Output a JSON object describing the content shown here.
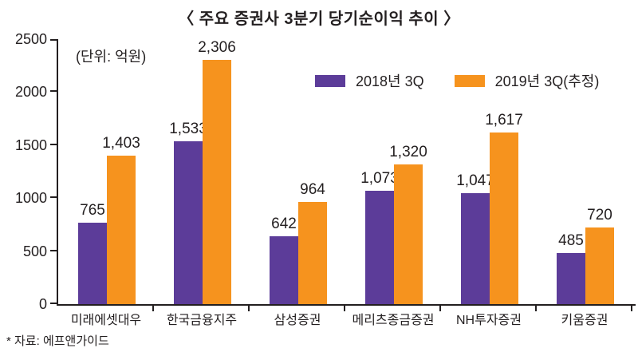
{
  "chart_data": {
    "type": "bar",
    "title": "〈 주요 증권사 3분기 당기순이익 추이 〉",
    "unit_label": "(단위: 억원)",
    "source": "* 자료: 에프앤가이드",
    "categories": [
      "미래에셋대우",
      "한국금융지주",
      "삼성증권",
      "메리츠종금증권",
      "NH투자증권",
      "키움증권"
    ],
    "series": [
      {
        "name": "2018년 3Q",
        "color": "#5c3c99",
        "values": [
          765,
          1533,
          642,
          1073,
          1047,
          485
        ],
        "labels": [
          "765",
          "1,533",
          "642",
          "1,073",
          "1,047",
          "485"
        ]
      },
      {
        "name": "2019년 3Q(추정)",
        "color": "#f6931e",
        "values": [
          1403,
          2306,
          964,
          1320,
          1617,
          720
        ],
        "labels": [
          "1,403",
          "2,306",
          "964",
          "1,320",
          "1,617",
          "720"
        ]
      }
    ],
    "ylim": [
      0,
      2500
    ],
    "yticks": [
      0,
      500,
      1000,
      1500,
      2000,
      2500
    ],
    "grid": false,
    "legend_position": "top-right",
    "axis_color": "#231f20",
    "text_color": "#231f20"
  }
}
